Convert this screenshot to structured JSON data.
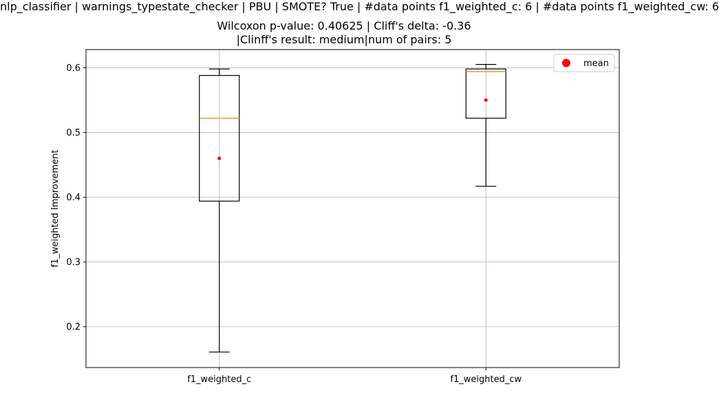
{
  "chart_data": {
    "type": "boxplot",
    "title_lines": [
      "nlp_classifier | warnings_typestate_checker | PBU | SMOTE? True | #data points f1_weighted_c: 6 | #data points f1_weighted_cw: 6",
      "Wilcoxon p-value: 0.40625 | Cliff's delta: -0.36",
      "|Clinff's result: medium|num of pairs: 5"
    ],
    "xlabel": "",
    "ylabel": "f1_weighted Improvement",
    "ylim": [
      0.137,
      0.628
    ],
    "yticks": [
      0.2,
      0.3,
      0.4,
      0.5,
      0.6
    ],
    "ytick_labels": [
      "0.2",
      "0.3",
      "0.4",
      "0.5",
      "0.6"
    ],
    "grid": true,
    "categories": [
      "f1_weighted_c",
      "f1_weighted_cw"
    ],
    "boxes": [
      {
        "label": "f1_weighted_c",
        "whisker_low": 0.161,
        "q1": 0.394,
        "median": 0.522,
        "q3": 0.588,
        "whisker_high": 0.598,
        "mean": 0.46
      },
      {
        "label": "f1_weighted_cw",
        "whisker_low": 0.417,
        "q1": 0.522,
        "median": 0.594,
        "q3": 0.598,
        "whisker_high": 0.605,
        "mean": 0.55
      }
    ],
    "legend": {
      "position": "upper right",
      "entries": [
        {
          "label": "mean",
          "marker": "circle"
        }
      ]
    },
    "colors": {
      "box": "#000000",
      "median": "#ff7f0e",
      "mean": "#ff0000",
      "grid": "#b0b0b0"
    }
  }
}
